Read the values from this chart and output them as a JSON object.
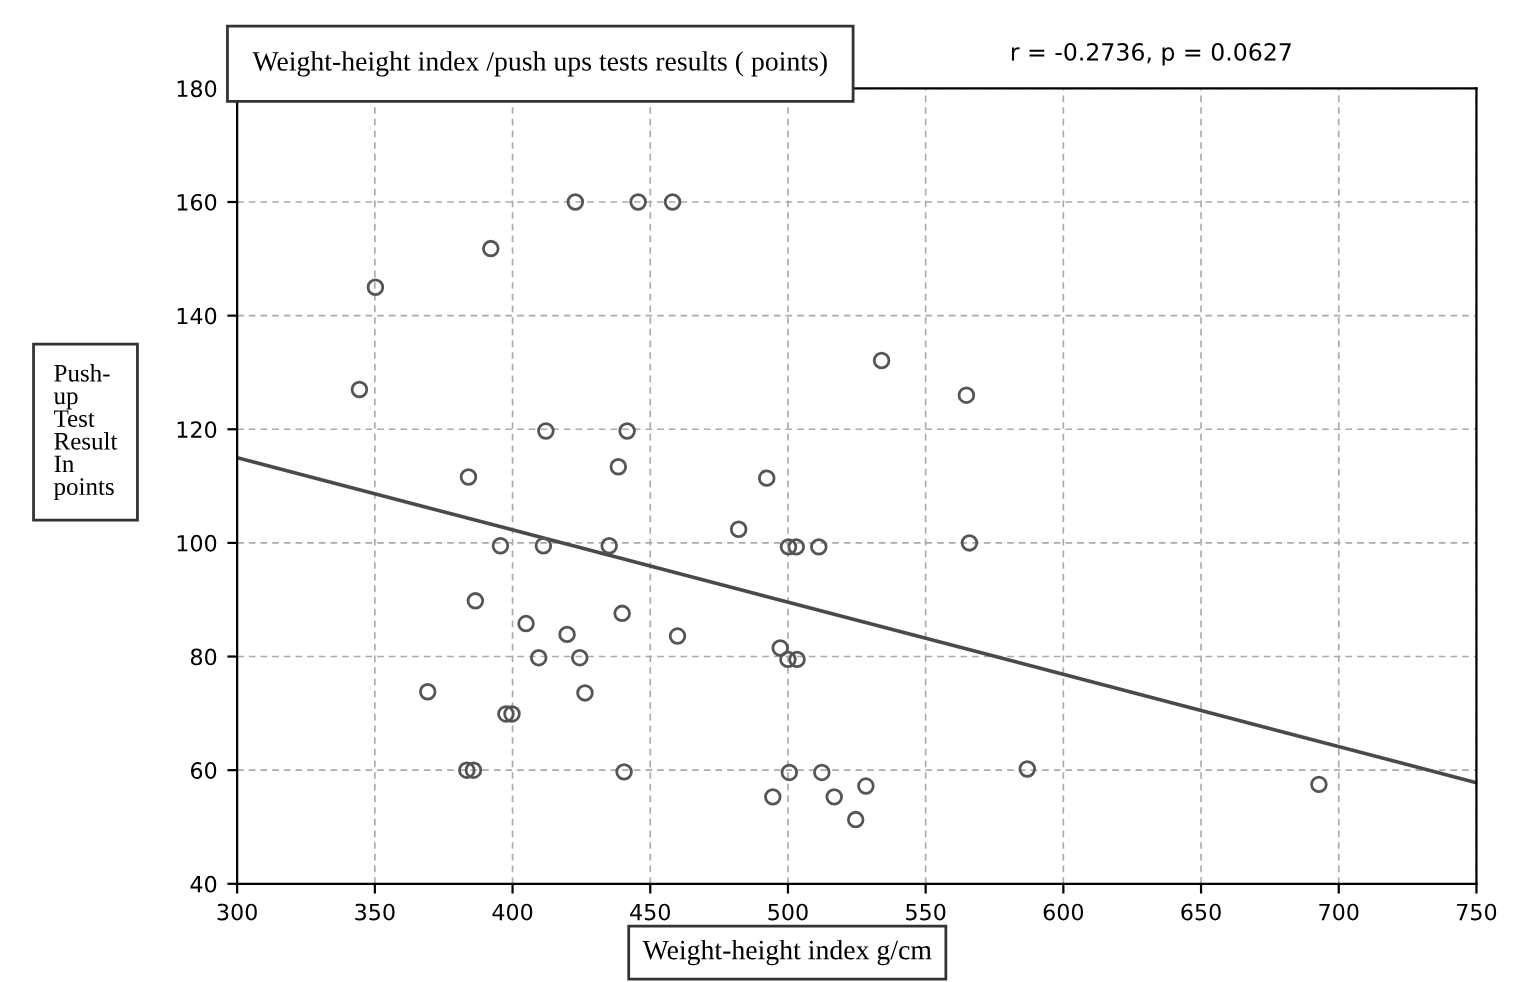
{
  "chart_data": {
    "type": "scatter",
    "title": "Weight-height index /push ups tests results ( points)",
    "xlabel": "Weight-height index g/cm",
    "ylabel": "Push-\nup\nTest\nResult\nIn\npoints",
    "annotations": [
      "r = -0.2736, p = 0.0627"
    ],
    "xlim": [
      300,
      750
    ],
    "ylim": [
      40,
      180
    ],
    "xticks": [
      300,
      350,
      400,
      450,
      500,
      550,
      600,
      650,
      700,
      750
    ],
    "yticks": [
      40,
      60,
      80,
      100,
      120,
      140,
      160,
      180
    ],
    "grid": true,
    "marker": "circle",
    "series": [
      {
        "color": "#555555",
        "x": [
          422.8,
          445.6,
          458.1,
          392.1,
          350.2,
          344.4,
          412.1,
          441.6,
          438.4,
          384,
          492.3,
          482.1,
          395.6,
          411.2,
          435.1,
          500.2,
          503,
          511.2,
          534,
          564.8,
          565.9,
          386.5,
          404.9,
          419.8,
          439.8,
          459.9,
          409.5,
          424.4,
          369.2,
          426.3,
          397.6,
          399.8,
          383.4,
          385.8,
          440.5,
          497.2,
          500,
          503.3,
          500.5,
          512.3,
          494.5,
          516.8,
          528.3,
          524.6,
          586.9,
          692.8
        ],
        "values": [
          160,
          160,
          160,
          151.8,
          145,
          127,
          119.7,
          119.7,
          113.4,
          111.6,
          111.4,
          102.4,
          99.5,
          99.5,
          99.5,
          99.3,
          99.3,
          99.3,
          132.1,
          126,
          100,
          89.8,
          85.8,
          83.9,
          87.6,
          83.6,
          79.8,
          79.8,
          73.8,
          73.6,
          69.9,
          69.9,
          60,
          60,
          59.7,
          81.5,
          79.5,
          79.5,
          59.6,
          59.6,
          55.3,
          55.3,
          57.2,
          51.3,
          60.2,
          57.5
        ]
      },
      {
        "type": "line",
        "color": "#4a4a4a",
        "x": [
          300,
          750
        ],
        "values": [
          115,
          57.8
        ],
        "marker": "none"
      }
    ]
  }
}
